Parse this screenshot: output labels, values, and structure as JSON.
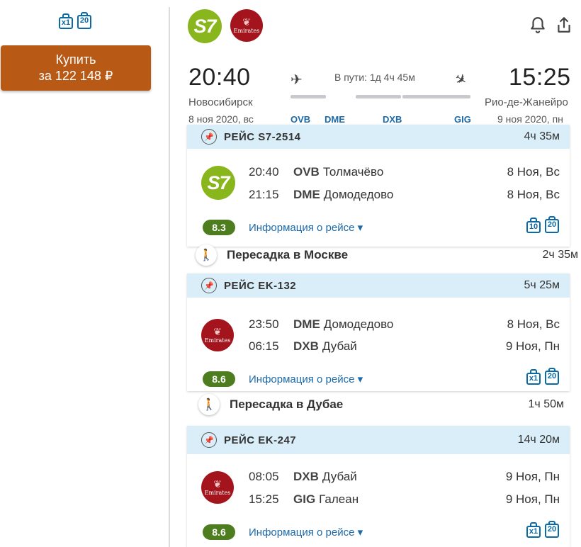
{
  "left": {
    "bags": [
      "x1",
      "20"
    ],
    "buy": {
      "line1": "Купить",
      "line2": "за 122 148 ₽"
    }
  },
  "header": {
    "dep_time": "20:40",
    "arr_time": "15:25",
    "dep_city": "Новосибирск",
    "arr_city": "Рио-де-Жанейро",
    "dep_date": "8 ноя 2020, вс",
    "arr_date": "9 ноя 2020, пн",
    "in_transit": "В пути: 1д 4ч 45м",
    "codes": [
      "OVB",
      "DME",
      "DXB",
      "GIG"
    ]
  },
  "flights": [
    {
      "title": "РЕЙС S7-2514",
      "duration": "4ч 35м",
      "airline": "S7",
      "segments": [
        {
          "time": "20:40",
          "code": "OVB",
          "name": "Толмачёво",
          "date": "8 Ноя, Вс"
        },
        {
          "time": "21:15",
          "code": "DME",
          "name": "Домодедово",
          "date": "8 Ноя, Вс"
        }
      ],
      "rating": "8.3",
      "info": "Информация о рейсе",
      "bags": [
        "10",
        "20"
      ]
    },
    {
      "title": "РЕЙС EK-132",
      "duration": "5ч 25м",
      "airline": "Emirates",
      "segments": [
        {
          "time": "23:50",
          "code": "DME",
          "name": "Домодедово",
          "date": "8 Ноя, Вс"
        },
        {
          "time": "06:15",
          "code": "DXB",
          "name": "Дубай",
          "date": "9 Ноя, Пн"
        }
      ],
      "rating": "8.6",
      "info": "Информация о рейсе",
      "bags": [
        "x1",
        "20"
      ]
    },
    {
      "title": "РЕЙС EK-247",
      "duration": "14ч 20м",
      "airline": "Emirates",
      "segments": [
        {
          "time": "08:05",
          "code": "DXB",
          "name": "Дубай",
          "date": "9 Ноя, Пн"
        },
        {
          "time": "15:25",
          "code": "GIG",
          "name": "Галеан",
          "date": "9 Ноя, Пн"
        }
      ],
      "rating": "8.6",
      "info": "Информация о рейсе",
      "bags": [
        "x1",
        "20"
      ]
    }
  ],
  "transfers": [
    {
      "text": "Пересадка в Москве",
      "duration": "2ч 35м"
    },
    {
      "text": "Пересадка в Дубае",
      "duration": "1ч 50м"
    }
  ],
  "colors": {
    "accent": "#b85a16",
    "link": "#1d6aa8",
    "rating": "#4d7d1f",
    "head_bg": "#d9eef8"
  }
}
